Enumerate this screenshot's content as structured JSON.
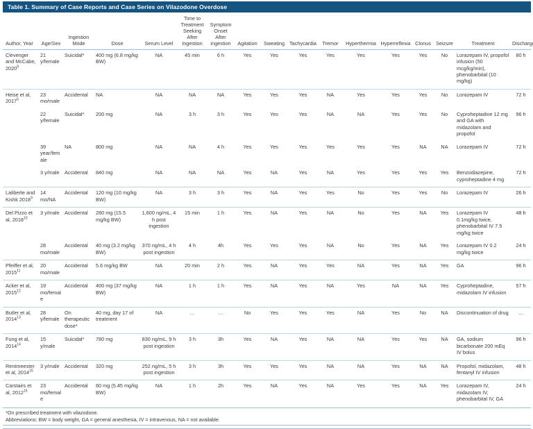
{
  "title": "Table 1. Summary of Case Reports and Case Series on Vilazodone Overdose",
  "columns": [
    "Author, Year",
    "Age/Sex",
    "Ingestion Mode",
    "Dose",
    "Serum Level",
    "Time to Treatment Seeking After Ingestion",
    "Symptom Onset After ingestion",
    "Agitation",
    "Sweating",
    "Tachycardia",
    "Tremor",
    "Hyperthermia",
    "Hyperreflexia",
    "Clonus",
    "Seizure",
    "Treatment",
    "Discharge"
  ],
  "groups": [
    {
      "author": "Clevenger and McCabe, 2020",
      "ref": "8",
      "rows": [
        [
          "21 y/female",
          "Suicidal*",
          "400 mg (6.8 mg/kg BW)",
          "NA",
          "45 min",
          "6 h",
          "Yes",
          "Yes",
          "Yes",
          "Yes",
          "Yes",
          "Yes",
          "Yes",
          "No",
          "Lorazepam IV, propofol infusion (50 mcg/kg/min), phenobarbital (10 mg/kg)",
          "80 h"
        ]
      ]
    },
    {
      "author": "Heise et al, 2017",
      "ref": "5",
      "rows": [
        [
          "23 mo/male",
          "Accidental",
          "NA",
          "NA",
          "NA",
          "NA",
          "Yes",
          "Yes",
          "Yes",
          "NA",
          "Yes",
          "Yes",
          "Yes",
          "No",
          "Lorazepam IV",
          "72 h"
        ],
        [
          "22 y/female",
          "Suicidal*",
          "200 mg",
          "NA",
          "3 h",
          "3 h",
          "Yes",
          "Yes",
          "Yes",
          "NA",
          "NA",
          "Yes",
          "Yes",
          "No",
          "Cyproheptadine 12 mg and GA with midazolam and propofol",
          "96 h"
        ],
        [
          "39 year/female",
          "NA",
          "800 mg",
          "NA",
          "NA",
          "4 h",
          "Yes",
          "Yes",
          "Yes",
          "Yes",
          "Yes",
          "Yes",
          "NA",
          "NA",
          "Lorazepam IV",
          "72 h"
        ],
        [
          "3 y/male",
          "Accidental",
          "840 mg",
          "NA",
          "NA",
          "NA",
          "Yes",
          "NA",
          "Yes",
          "NA",
          "Yes",
          "Yes",
          "Yes",
          "Yes",
          "Benzodiazepine, cyproheptadine 4 mg",
          "72 h"
        ]
      ]
    },
    {
      "author": "Laliberte and Kishk 2018",
      "ref": "9",
      "rows": [
        [
          "14 mo/NA",
          "Accidental",
          "120 mg (10 mg/kg BW)",
          "NA",
          "3 h",
          "3 h",
          "Yes",
          "NA",
          "Yes",
          "Yes",
          "No",
          "Yes",
          "Yes",
          "No",
          "Lorazepam IV",
          "26 h"
        ]
      ]
    },
    {
      "author": "Del Pizzo et al, 2018",
      "ref": "10",
      "rows": [
        [
          "3 y/male",
          "Accidental",
          "280 mg (15.5 mg/kg BW)",
          "1,600 ng/mL, 4 h post ingestion",
          "15 min",
          "1 h",
          "Yes",
          "NA",
          "Yes",
          "NA",
          "No",
          "Yes",
          "NA",
          "Yes",
          "Lorazepam IV 0.1mg/kg twice, phenobarbital IV 7.5 mg/kg twice",
          "48 h"
        ],
        [
          "28 mo/male",
          "Accidental",
          "40 mg (3.2 mg/kg BW)",
          "370 ng/mL, 4 h post ingestion",
          "4 h",
          "4h",
          "Yes",
          "Yes",
          "Yes",
          "NA",
          "No",
          "Yes",
          "NA",
          "Yes",
          "Lorazepam IV 0.2 mg/kg twice",
          "24 h"
        ]
      ]
    },
    {
      "author": "Pfeiffer et al, 2015",
      "ref": "11",
      "rows": [
        [
          "20 mo/male",
          "Accidental",
          "5.6 mg/kg BW",
          "NA",
          "20 min",
          "2 h",
          "Yes",
          "NA",
          "Yes",
          "Yes",
          "NA",
          "Yes",
          "NA",
          "Yes",
          "GA",
          "96 h"
        ]
      ]
    },
    {
      "author": "Acker et al, 2015",
      "ref": "12",
      "rows": [
        [
          "19 mo/female",
          "Accidental",
          "400 mg (37 mg/kg BW)",
          "NA",
          "1 h",
          "1 h",
          "Yes",
          "NA",
          "Yes",
          "NA",
          "Yes",
          "NA",
          "NA",
          "Yes",
          "Cyproheptadine, midazolam IV infusion",
          "57 h"
        ]
      ]
    },
    {
      "author": "Butler et al, 2014",
      "ref": "13",
      "rows": [
        [
          "28 y/female",
          "On therapeutic dose*",
          "40 mg, day 17 of treatment",
          "NA",
          "…",
          "…",
          "No",
          "Yes",
          "Yes",
          "Yes",
          "NA",
          "Yes",
          "No",
          "NA",
          "Discontinuation of drug",
          "…"
        ]
      ]
    },
    {
      "author": "Fung et al, 2014",
      "ref": "14",
      "rows": [
        [
          "15 y/male",
          "Suicidal*",
          "780 mg",
          "830 ng/mL, 9 h post ingestion",
          "3 h",
          "3h",
          "Yes",
          "NA",
          "Yes",
          "NA",
          "NA",
          "Yes",
          "Yes",
          "NA",
          "GA, sodium bicarbonate 200 mEq IV bolus",
          "96 h"
        ]
      ]
    },
    {
      "author": "Rentmeester et al, 2014",
      "ref": "15",
      "rows": [
        [
          "3 y/male",
          "Accidental",
          "320 mg",
          "252 ng/mL, 5 h post ingestion",
          "3 h",
          "3h",
          "Yes",
          "Yes",
          "Yes",
          "NA",
          "NA",
          "Yes",
          "NA",
          "NA",
          "Propofol, midazolam, fentanyl IV infusion",
          "48 h"
        ]
      ]
    },
    {
      "author": "Carstairs et al, 2012",
      "ref": "16",
      "rows": [
        [
          "23 mo/female",
          "Accidental",
          "60 mg (5.45 mg/kg BW)",
          "NA",
          "1 h",
          "2h",
          "Yes",
          "NA",
          "Yes",
          "NA",
          "Yes",
          "Yes",
          "NA",
          "Yes",
          "Lorazepam IV, midazolam IV, phenobarbital IV, GA",
          "24 h"
        ]
      ]
    }
  ],
  "footnotes": [
    "*On prescribed treatment with vilazodone.",
    "Abbreviations: BW = body weight, GA = general anesthesia, IV = intravenous, NA = not available."
  ]
}
